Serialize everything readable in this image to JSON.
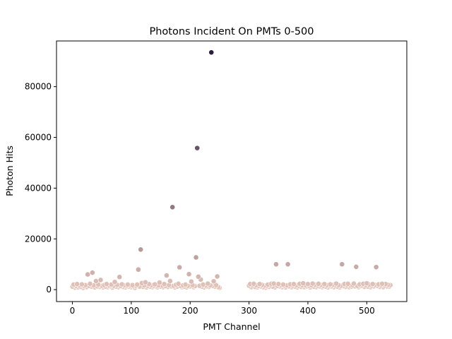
{
  "chart_data": {
    "type": "scatter",
    "title": "Photons Incident On PMTs 0-500",
    "xlabel": "PMT Channel",
    "ylabel": "Photon Hits",
    "xlim": [
      -27,
      568
    ],
    "ylim": [
      -4700,
      98000
    ],
    "xticks": [
      0,
      100,
      200,
      300,
      400,
      500
    ],
    "yticks": [
      0,
      20000,
      40000,
      60000,
      80000
    ],
    "xtick_labels": [
      "0",
      "100",
      "200",
      "300",
      "400",
      "500"
    ],
    "ytick_labels": [
      "0",
      "20000",
      "40000",
      "60000",
      "80000"
    ],
    "grid": false,
    "legend": "none",
    "colormap": [
      "#eccdc1",
      "#2e1e3b"
    ],
    "series": [
      {
        "points": [
          [
            0,
            1200
          ],
          [
            2,
            2000
          ],
          [
            4,
            800
          ],
          [
            6,
            1500
          ],
          [
            8,
            2200
          ],
          [
            10,
            900
          ],
          [
            12,
            1600
          ],
          [
            14,
            1100
          ],
          [
            16,
            2100
          ],
          [
            18,
            700
          ],
          [
            20,
            1400
          ],
          [
            22,
            1800
          ],
          [
            24,
            1000
          ],
          [
            26,
            6000
          ],
          [
            28,
            1500
          ],
          [
            30,
            2300
          ],
          [
            32,
            1200
          ],
          [
            34,
            6700
          ],
          [
            36,
            1700
          ],
          [
            38,
            900
          ],
          [
            40,
            3400
          ],
          [
            42,
            1300
          ],
          [
            44,
            2000
          ],
          [
            46,
            1100
          ],
          [
            48,
            3800
          ],
          [
            50,
            1500
          ],
          [
            52,
            900
          ],
          [
            54,
            1800
          ],
          [
            56,
            1200
          ],
          [
            58,
            2200
          ],
          [
            60,
            1000
          ],
          [
            62,
            1600
          ],
          [
            64,
            1300
          ],
          [
            66,
            2000
          ],
          [
            68,
            800
          ],
          [
            70,
            1500
          ],
          [
            72,
            3000
          ],
          [
            74,
            1200
          ],
          [
            76,
            1900
          ],
          [
            78,
            1000
          ],
          [
            80,
            5000
          ],
          [
            82,
            1400
          ],
          [
            84,
            2100
          ],
          [
            86,
            1100
          ],
          [
            88,
            1700
          ],
          [
            90,
            900
          ],
          [
            92,
            1500
          ],
          [
            94,
            2000
          ],
          [
            96,
            1200
          ],
          [
            98,
            1600
          ],
          [
            100,
            1000
          ],
          [
            102,
            1800
          ],
          [
            104,
            1300
          ],
          [
            106,
            700
          ],
          [
            108,
            1500
          ],
          [
            110,
            2000
          ],
          [
            112,
            7900
          ],
          [
            114,
            1200
          ],
          [
            116,
            15800
          ],
          [
            118,
            2600
          ],
          [
            120,
            1100
          ],
          [
            122,
            1700
          ],
          [
            124,
            2900
          ],
          [
            126,
            900
          ],
          [
            128,
            1500
          ],
          [
            130,
            2200
          ],
          [
            132,
            1200
          ],
          [
            134,
            1800
          ],
          [
            136,
            1000
          ],
          [
            138,
            1500
          ],
          [
            140,
            2100
          ],
          [
            142,
            1300
          ],
          [
            144,
            900
          ],
          [
            146,
            1700
          ],
          [
            148,
            2800
          ],
          [
            150,
            1200
          ],
          [
            152,
            1600
          ],
          [
            154,
            1000
          ],
          [
            156,
            2200
          ],
          [
            158,
            1400
          ],
          [
            160,
            5600
          ],
          [
            162,
            1100
          ],
          [
            164,
            1800
          ],
          [
            166,
            3400
          ],
          [
            168,
            1300
          ],
          [
            170,
            32500
          ],
          [
            172,
            1500
          ],
          [
            174,
            900
          ],
          [
            176,
            1900
          ],
          [
            178,
            1200
          ],
          [
            180,
            2300
          ],
          [
            182,
            8800
          ],
          [
            184,
            1400
          ],
          [
            186,
            1000
          ],
          [
            188,
            1700
          ],
          [
            190,
            1200
          ],
          [
            192,
            2000
          ],
          [
            194,
            900
          ],
          [
            196,
            1500
          ],
          [
            198,
            6100
          ],
          [
            200,
            1300
          ],
          [
            202,
            3200
          ],
          [
            204,
            1800
          ],
          [
            206,
            1000
          ],
          [
            208,
            1400
          ],
          [
            210,
            12700
          ],
          [
            212,
            55800
          ],
          [
            214,
            5100
          ],
          [
            216,
            1500
          ],
          [
            218,
            4000
          ],
          [
            220,
            1200
          ],
          [
            222,
            2000
          ],
          [
            224,
            900
          ],
          [
            226,
            1600
          ],
          [
            228,
            1300
          ],
          [
            230,
            2400
          ],
          [
            232,
            1100
          ],
          [
            234,
            1700
          ],
          [
            236,
            93500
          ],
          [
            238,
            1500
          ],
          [
            240,
            3300
          ],
          [
            242,
            1200
          ],
          [
            244,
            1800
          ],
          [
            246,
            5200
          ],
          [
            248,
            1000
          ],
          [
            250,
            700
          ],
          [
            300,
            1600
          ],
          [
            302,
            2200
          ],
          [
            304,
            1000
          ],
          [
            306,
            1700
          ],
          [
            308,
            2300
          ],
          [
            310,
            1100
          ],
          [
            312,
            1800
          ],
          [
            314,
            900
          ],
          [
            316,
            1500
          ],
          [
            318,
            2200
          ],
          [
            320,
            1300
          ],
          [
            322,
            1900
          ],
          [
            324,
            1000
          ],
          [
            326,
            1600
          ],
          [
            328,
            800
          ],
          [
            330,
            1400
          ],
          [
            332,
            2000
          ],
          [
            334,
            1100
          ],
          [
            336,
            1700
          ],
          [
            338,
            2300
          ],
          [
            340,
            1200
          ],
          [
            342,
            2400
          ],
          [
            344,
            900
          ],
          [
            346,
            10000
          ],
          [
            348,
            1500
          ],
          [
            350,
            2200
          ],
          [
            352,
            1300
          ],
          [
            354,
            1800
          ],
          [
            356,
            1000
          ],
          [
            358,
            2000
          ],
          [
            360,
            1500
          ],
          [
            362,
            900
          ],
          [
            364,
            1700
          ],
          [
            366,
            10000
          ],
          [
            368,
            1300
          ],
          [
            370,
            2100
          ],
          [
            372,
            1000
          ],
          [
            374,
            1600
          ],
          [
            376,
            2200
          ],
          [
            378,
            1200
          ],
          [
            380,
            1800
          ],
          [
            382,
            900
          ],
          [
            384,
            1500
          ],
          [
            386,
            2300
          ],
          [
            388,
            1100
          ],
          [
            390,
            1700
          ],
          [
            392,
            2500
          ],
          [
            394,
            1000
          ],
          [
            396,
            1800
          ],
          [
            398,
            1300
          ],
          [
            400,
            2200
          ],
          [
            402,
            1500
          ],
          [
            404,
            900
          ],
          [
            406,
            1700
          ],
          [
            408,
            2400
          ],
          [
            410,
            1200
          ],
          [
            412,
            2000
          ],
          [
            414,
            1000
          ],
          [
            416,
            1600
          ],
          [
            418,
            2300
          ],
          [
            420,
            1300
          ],
          [
            422,
            1900
          ],
          [
            424,
            1000
          ],
          [
            426,
            1500
          ],
          [
            428,
            2200
          ],
          [
            430,
            1200
          ],
          [
            432,
            1800
          ],
          [
            434,
            900
          ],
          [
            436,
            1600
          ],
          [
            438,
            2100
          ],
          [
            440,
            1300
          ],
          [
            442,
            1900
          ],
          [
            444,
            1000
          ],
          [
            446,
            1700
          ],
          [
            448,
            2400
          ],
          [
            450,
            1200
          ],
          [
            452,
            1800
          ],
          [
            454,
            900
          ],
          [
            456,
            1500
          ],
          [
            458,
            10000
          ],
          [
            460,
            1400
          ],
          [
            462,
            2200
          ],
          [
            464,
            1100
          ],
          [
            466,
            1700
          ],
          [
            468,
            2300
          ],
          [
            470,
            1000
          ],
          [
            472,
            1600
          ],
          [
            474,
            1200
          ],
          [
            476,
            1800
          ],
          [
            478,
            2400
          ],
          [
            480,
            1300
          ],
          [
            482,
            9000
          ],
          [
            484,
            1500
          ],
          [
            486,
            1000
          ],
          [
            488,
            2100
          ],
          [
            490,
            1400
          ],
          [
            492,
            1700
          ],
          [
            494,
            2300
          ],
          [
            496,
            1100
          ],
          [
            498,
            1800
          ],
          [
            500,
            2500
          ],
          [
            502,
            1200
          ],
          [
            504,
            2000
          ],
          [
            506,
            1000
          ],
          [
            508,
            1600
          ],
          [
            510,
            2200
          ],
          [
            512,
            1300
          ],
          [
            514,
            1900
          ],
          [
            516,
            8900
          ],
          [
            518,
            1500
          ],
          [
            520,
            2100
          ],
          [
            522,
            1100
          ],
          [
            524,
            1700
          ],
          [
            526,
            2300
          ],
          [
            528,
            1000
          ],
          [
            530,
            1600
          ],
          [
            532,
            2200
          ],
          [
            534,
            1300
          ],
          [
            536,
            1900
          ],
          [
            538,
            1200
          ],
          [
            540,
            1800
          ]
        ]
      }
    ]
  }
}
